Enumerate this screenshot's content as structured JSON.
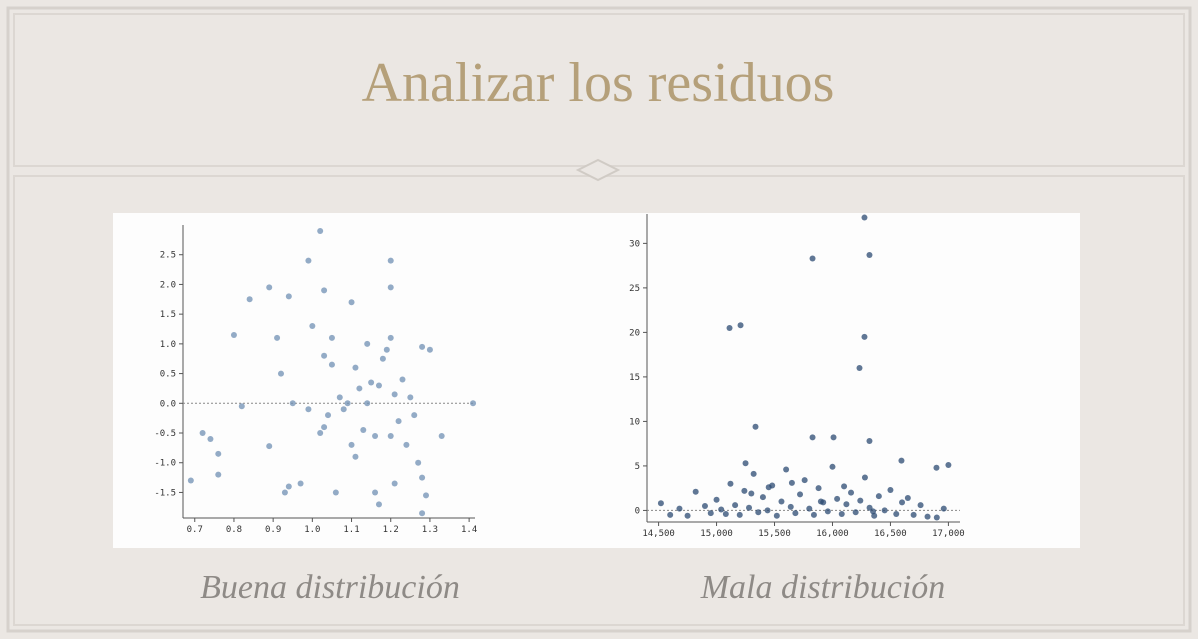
{
  "title": "Analizar los residuos",
  "chart_data": [
    {
      "type": "scatter",
      "caption": "Buena distribución",
      "color": "#6f8fb3",
      "reference_line": 0,
      "xlim": [
        0.67,
        1.415
      ],
      "ylim": [
        -1.93,
        3.0
      ],
      "xticks": [
        0.7,
        0.8,
        0.9,
        {
          "value": 1,
          "label": "1.0"
        },
        1.1,
        1.2,
        1.3,
        1.4
      ],
      "yticks": [
        2.5,
        {
          "value": 2,
          "label": "2.0"
        },
        1.5,
        {
          "value": 1,
          "label": "1.0"
        },
        0.5,
        {
          "value": 0,
          "label": "0.0"
        },
        -0.5,
        {
          "value": -1,
          "label": "-1.0"
        },
        -1.5
      ],
      "x": [
        0.72,
        0.74,
        0.76,
        0.76,
        0.69,
        0.8,
        0.82,
        0.84,
        0.89,
        0.89,
        0.91,
        0.92,
        0.94,
        0.93,
        0.94,
        0.95,
        0.97,
        0.99,
        1.0,
        0.99,
        1.02,
        1.03,
        1.03,
        1.02,
        1.03,
        1.04,
        1.05,
        1.05,
        1.06,
        1.07,
        1.08,
        1.09,
        1.1,
        1.1,
        1.11,
        1.11,
        1.12,
        1.13,
        1.14,
        1.15,
        1.16,
        1.17,
        1.17,
        1.18,
        1.19,
        1.2,
        1.2,
        1.2,
        1.2,
        1.21,
        1.22,
        1.23,
        1.24,
        1.25,
        1.26,
        1.27,
        1.28,
        1.28,
        1.29,
        1.28,
        1.3,
        1.33,
        1.41,
        1.21,
        1.16,
        1.14
      ],
      "values": [
        -0.5,
        -0.6,
        -0.85,
        -1.2,
        -1.3,
        1.15,
        -0.05,
        1.75,
        1.95,
        -0.72,
        1.1,
        0.5,
        1.8,
        -1.5,
        -1.4,
        0.0,
        -1.35,
        2.4,
        1.3,
        -0.1,
        2.9,
        1.9,
        0.8,
        -0.5,
        -0.4,
        -0.2,
        0.65,
        1.1,
        -1.5,
        0.1,
        -0.1,
        0.0,
        1.7,
        -0.7,
        -0.9,
        0.6,
        0.25,
        -0.45,
        1.0,
        0.35,
        -0.55,
        -1.7,
        0.3,
        0.75,
        0.9,
        1.95,
        2.4,
        1.1,
        -0.55,
        0.15,
        -0.3,
        0.4,
        -0.7,
        0.1,
        -0.2,
        -1.0,
        0.95,
        -1.25,
        -1.55,
        -1.85,
        0.9,
        -0.55,
        0.0,
        -1.35,
        -1.5,
        0.0
      ]
    },
    {
      "type": "scatter",
      "caption": "Mala distribución",
      "color": "#2b4a72",
      "reference_line": 0,
      "xlim": [
        14400,
        17100
      ],
      "ylim": [
        -1.3,
        33.3
      ],
      "xticks": [
        {
          "value": 14500,
          "label": "14,500"
        },
        {
          "value": 15000,
          "label": "15,000"
        },
        {
          "value": 15500,
          "label": "15,500"
        },
        {
          "value": 16000,
          "label": "16,000"
        },
        {
          "value": 16500,
          "label": "16,500"
        },
        {
          "value": 17000,
          "label": "17,000"
        }
      ],
      "yticks": [
        0,
        5,
        10,
        15,
        20,
        25,
        30
      ],
      "x": [
        15207,
        15112,
        15828,
        16276,
        16319,
        16276,
        16233,
        15336,
        15828,
        16009,
        16319,
        15250,
        16595,
        17000,
        16897,
        14520,
        14600,
        14680,
        14750,
        14820,
        14900,
        14950,
        15000,
        15040,
        15080,
        15120,
        15160,
        15200,
        15240,
        15280,
        15320,
        15360,
        15400,
        15440,
        15480,
        15520,
        15560,
        15600,
        15640,
        15680,
        15720,
        15760,
        15800,
        15840,
        15880,
        15920,
        15960,
        16000,
        16040,
        16080,
        16120,
        16160,
        16200,
        16240,
        16280,
        16320,
        16360,
        16400,
        16450,
        16500,
        16550,
        16600,
        16650,
        16700,
        16760,
        16820,
        16900,
        16960,
        15300,
        15450,
        15650,
        15900,
        16100,
        16350
      ],
      "values": [
        20.8,
        20.5,
        28.3,
        32.9,
        28.7,
        19.5,
        16.0,
        9.4,
        8.2,
        8.2,
        7.8,
        5.3,
        5.6,
        5.1,
        4.8,
        0.8,
        -0.5,
        0.2,
        -0.6,
        2.1,
        0.5,
        -0.3,
        1.2,
        0.1,
        -0.4,
        3.0,
        0.6,
        -0.5,
        2.2,
        0.3,
        4.1,
        -0.2,
        1.5,
        0.0,
        2.8,
        -0.6,
        1.0,
        4.6,
        0.4,
        -0.3,
        1.8,
        3.4,
        0.2,
        -0.5,
        2.5,
        0.9,
        -0.1,
        4.9,
        1.3,
        -0.4,
        0.7,
        2.0,
        -0.2,
        1.1,
        3.7,
        0.3,
        -0.6,
        1.6,
        0.0,
        2.3,
        -0.4,
        0.9,
        1.4,
        -0.5,
        0.6,
        -0.7,
        -0.8,
        0.2,
        1.9,
        2.6,
        3.1,
        1.0,
        2.7,
        -0.1
      ]
    }
  ]
}
